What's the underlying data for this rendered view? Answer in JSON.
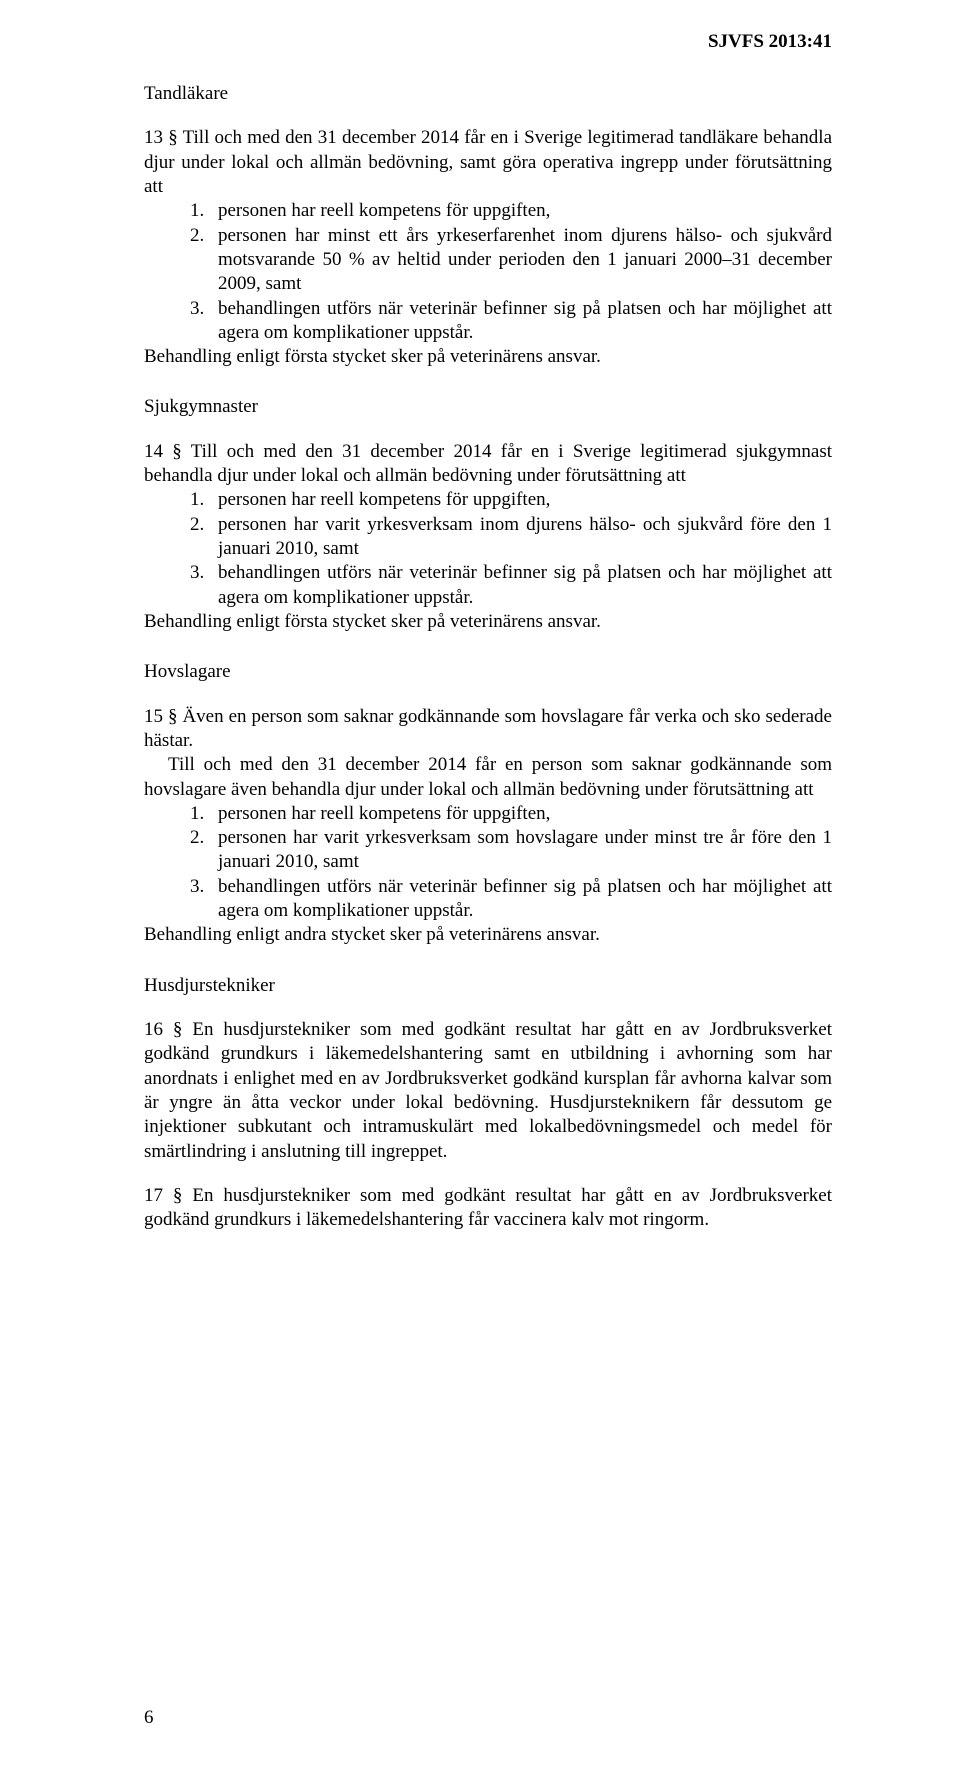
{
  "header": {
    "doc_ref": "SJVFS 2013:41"
  },
  "page": {
    "number": "6"
  },
  "sections": {
    "tandlakare": {
      "heading": "Tandläkare",
      "intro": "13 § Till och med den 31 december 2014 får en i Sverige legitimerad tandläkare behandla djur under lokal och allmän bedövning, samt göra operativa ingrepp under förutsättning att",
      "items": [
        {
          "num": "1.",
          "text": "personen har reell kompetens för uppgiften,"
        },
        {
          "num": "2.",
          "text": "personen har minst ett års yrkeserfarenhet inom djurens hälso- och sjukvård motsvarande 50 % av heltid under perioden den 1 januari 2000–31 december 2009, samt"
        },
        {
          "num": "3.",
          "text": "behandlingen utförs när veterinär befinner sig på platsen och har möjlighet att agera om komplikationer uppstår."
        }
      ],
      "closing": "Behandling enligt första stycket sker på veterinärens ansvar."
    },
    "sjukgymnaster": {
      "heading": "Sjukgymnaster",
      "intro": "14 § Till och med den 31 december 2014 får en i Sverige legitimerad sjukgymnast behandla djur under lokal och allmän bedövning under förutsättning att",
      "items": [
        {
          "num": "1.",
          "text": "personen har reell kompetens för uppgiften,"
        },
        {
          "num": "2.",
          "text": "personen har varit yrkesverksam inom djurens hälso- och sjukvård före den 1 januari 2010, samt"
        },
        {
          "num": "3.",
          "text": "behandlingen utförs när veterinär befinner sig på platsen och har möjlighet att agera om komplikationer uppstår."
        }
      ],
      "closing": "Behandling enligt första stycket sker på veterinärens ansvar."
    },
    "hovslagare": {
      "heading": "Hovslagare",
      "intro1": "15 § Även en person som saknar godkännande som hovslagare får verka och sko sederade hästar.",
      "intro2": "Till och med den 31 december 2014 får en person som saknar godkännande som hovslagare även behandla djur under lokal och allmän bedövning under förutsättning att",
      "items": [
        {
          "num": "1.",
          "text": "personen har reell kompetens för uppgiften,"
        },
        {
          "num": "2.",
          "text": "personen har varit yrkesverksam som hovslagare under minst tre år före den 1 januari 2010, samt"
        },
        {
          "num": "3.",
          "text": "behandlingen utförs när veterinär befinner sig på platsen och har möjlighet att agera om komplikationer uppstår."
        }
      ],
      "closing": "Behandling enligt andra stycket sker på veterinärens ansvar."
    },
    "husdjurstekniker": {
      "heading": "Husdjurstekniker",
      "p1": "16 § En husdjurstekniker som med godkänt resultat har gått en av Jordbruksverket godkänd grundkurs i läkemedelshantering samt en utbildning i avhorning som har anordnats i enlighet med en av Jordbruksverket godkänd kursplan får avhorna kalvar som är yngre än åtta veckor under lokal bedövning. Husdjursteknikern får dessutom ge injektioner subkutant och intramuskulärt med lokalbedövningsmedel och medel för smärtlindring i anslutning till ingreppet.",
      "p2": "17 § En husdjurstekniker som med godkänt resultat har gått en av Jordbruksverket godkänd grundkurs i läkemedelshantering får vaccinera kalv mot ringorm."
    }
  }
}
